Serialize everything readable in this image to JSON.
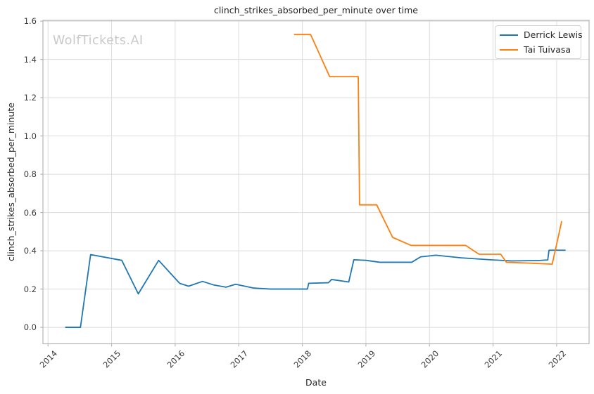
{
  "title": "clinch_strikes_absorbed_per_minute over time",
  "watermark": "WolfTickets.AI",
  "colors": {
    "derrick_lewis": "#1f77b4",
    "tai_tuivasa": "#ff7f0e",
    "grid": "#dcdcdc",
    "spine": "#b5b5b5",
    "text": "#262626",
    "tick_text": "#3a3a3a",
    "watermark": "#c9c9c9",
    "background": "#ffffff"
  },
  "chart_data": {
    "type": "line",
    "title": "clinch_strikes_absorbed_per_minute over time",
    "xlabel": "Date",
    "ylabel": "clinch_strikes_absorbed_per_minute",
    "x_ticks": [
      2014,
      2015,
      2016,
      2017,
      2018,
      2019,
      2020,
      2021,
      2022
    ],
    "y_ticks": [
      0.0,
      0.2,
      0.4,
      0.6,
      0.8,
      1.0,
      1.2,
      1.4,
      1.6
    ],
    "xlim": [
      2013.92,
      2022.51
    ],
    "ylim": [
      -0.086,
      1.604
    ],
    "grid": true,
    "legend_position": "upper right",
    "series": [
      {
        "name": "Derrick Lewis",
        "color": "#1f77b4",
        "points": [
          [
            2014.27,
            0.0
          ],
          [
            2014.51,
            0.0
          ],
          [
            2014.67,
            0.38
          ],
          [
            2015.16,
            0.35
          ],
          [
            2015.42,
            0.175
          ],
          [
            2015.74,
            0.35
          ],
          [
            2016.07,
            0.23
          ],
          [
            2016.21,
            0.215
          ],
          [
            2016.43,
            0.24
          ],
          [
            2016.6,
            0.222
          ],
          [
            2016.8,
            0.21
          ],
          [
            2016.95,
            0.225
          ],
          [
            2017.24,
            0.205
          ],
          [
            2017.5,
            0.2
          ],
          [
            2018.08,
            0.2
          ],
          [
            2018.1,
            0.23
          ],
          [
            2018.41,
            0.233
          ],
          [
            2018.46,
            0.25
          ],
          [
            2018.73,
            0.237
          ],
          [
            2018.81,
            0.353
          ],
          [
            2019.0,
            0.35
          ],
          [
            2019.22,
            0.34
          ],
          [
            2019.72,
            0.34
          ],
          [
            2019.86,
            0.368
          ],
          [
            2020.1,
            0.377
          ],
          [
            2020.5,
            0.363
          ],
          [
            2021.0,
            0.352
          ],
          [
            2021.3,
            0.347
          ],
          [
            2021.7,
            0.349
          ],
          [
            2021.86,
            0.352
          ],
          [
            2021.88,
            0.403
          ],
          [
            2022.14,
            0.403
          ]
        ]
      },
      {
        "name": "Tai Tuivasa",
        "color": "#ff7f0e",
        "points": [
          [
            2017.87,
            1.53
          ],
          [
            2018.13,
            1.53
          ],
          [
            2018.43,
            1.31
          ],
          [
            2018.88,
            1.31
          ],
          [
            2018.9,
            0.64
          ],
          [
            2019.17,
            0.64
          ],
          [
            2019.42,
            0.47
          ],
          [
            2019.71,
            0.428
          ],
          [
            2020.57,
            0.428
          ],
          [
            2020.78,
            0.382
          ],
          [
            2021.12,
            0.382
          ],
          [
            2021.21,
            0.34
          ],
          [
            2021.6,
            0.335
          ],
          [
            2021.93,
            0.33
          ],
          [
            2022.08,
            0.555
          ]
        ]
      }
    ]
  }
}
